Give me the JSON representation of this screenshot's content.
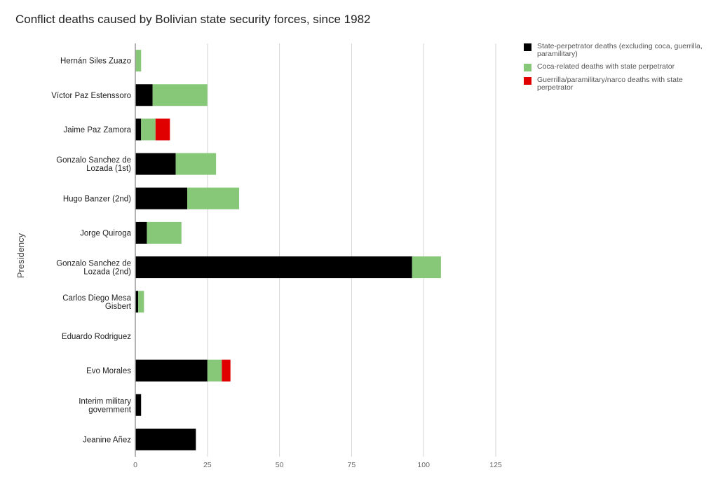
{
  "chart_data": {
    "type": "bar",
    "orientation": "horizontal",
    "stacked": true,
    "title": "Conflict deaths caused by Bolivian state security forces, since 1982",
    "xlabel": "",
    "ylabel": "Presidency",
    "xlim": [
      0,
      125
    ],
    "xticks": [
      "0",
      "25",
      "50",
      "75",
      "100",
      "125"
    ],
    "grid": true,
    "legend_position": "right",
    "categories": [
      [
        "Hernán Siles Zuazo"
      ],
      [
        "Víctor Paz Estenssoro"
      ],
      [
        "Jaime Paz Zamora"
      ],
      [
        "Gonzalo Sanchez de",
        "Lozada (1st)"
      ],
      [
        "Hugo Banzer (2nd)"
      ],
      [
        "Jorge Quiroga"
      ],
      [
        "Gonzalo Sanchez de",
        "Lozada (2nd)"
      ],
      [
        "Carlos Diego Mesa",
        "Gisbert"
      ],
      [
        "Eduardo Rodriguez"
      ],
      [
        "Evo Morales"
      ],
      [
        "Interim military",
        "government"
      ],
      [
        "Jeanine Añez"
      ]
    ],
    "series": [
      {
        "name": "State-perpetrator deaths (excluding coca, guerrilla, paramilitary)",
        "color": "#000000",
        "values": [
          0,
          6,
          2,
          14,
          18,
          4,
          96,
          1,
          0,
          25,
          2,
          21
        ]
      },
      {
        "name": "Coca-related deaths with state perpetrator",
        "color": "#87c878",
        "values": [
          2,
          19,
          5,
          14,
          18,
          12,
          10,
          2,
          0,
          5,
          0,
          0
        ]
      },
      {
        "name": "Guerrilla/paramilitary/narco deaths with state perpetrator",
        "color": "#e00000",
        "values": [
          0,
          0,
          5,
          0,
          0,
          0,
          0,
          0,
          0,
          3,
          0,
          0
        ]
      }
    ]
  }
}
